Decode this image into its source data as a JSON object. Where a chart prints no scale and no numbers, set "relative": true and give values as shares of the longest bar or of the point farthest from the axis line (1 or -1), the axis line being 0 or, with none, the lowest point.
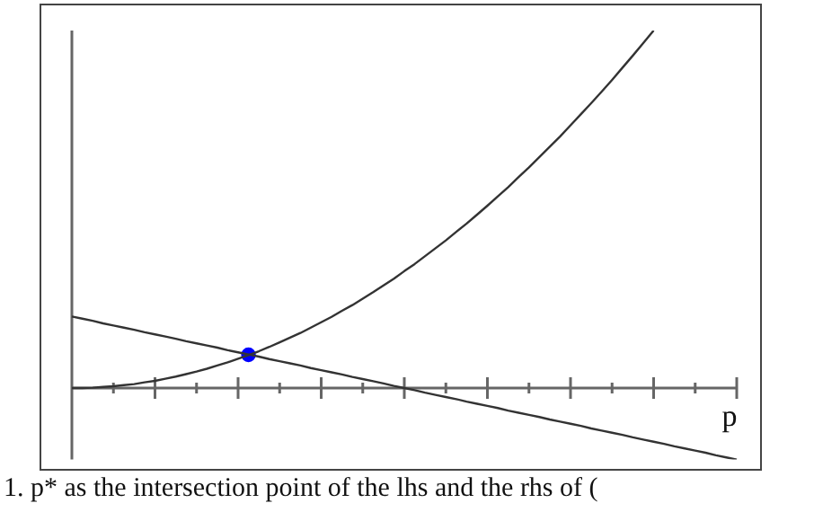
{
  "chart_data": {
    "type": "line",
    "relative": true,
    "xlabel": "p",
    "legend": false,
    "annotations": [
      "1.   p* as the intersection point of the lhs and the rhs of ("
    ],
    "categories": [
      null,
      null,
      null,
      null,
      null,
      null,
      null,
      null,
      null,
      null,
      null,
      null,
      null,
      null,
      null,
      null,
      null,
      null,
      null,
      null,
      null,
      null,
      null,
      null,
      null,
      null,
      null,
      null,
      null,
      null,
      null,
      null,
      null,
      null,
      null,
      null,
      null,
      null,
      null,
      null,
      null,
      null,
      null,
      null,
      null,
      null,
      null,
      null,
      null,
      null,
      null,
      null,
      null,
      null,
      null,
      null,
      null,
      null,
      null,
      null,
      null,
      null,
      null,
      null,
      null
    ],
    "series": [
      {
        "color": "#333333",
        "marker": "none",
        "values": [
          0,
          0,
          0.001,
          0.003,
          0.005,
          0.008,
          0.011,
          0.016,
          0.02,
          0.026,
          0.032,
          0.039,
          0.046,
          0.054,
          0.063,
          0.072,
          0.082,
          0.092,
          0.103,
          0.115,
          0.128,
          0.141,
          0.154,
          0.169,
          0.184,
          0.199,
          0.216,
          0.232,
          0.25,
          0.268,
          0.287,
          0.306,
          0.327,
          0.347,
          0.369,
          0.391,
          0.413,
          0.437,
          0.46,
          0.485,
          0.51,
          0.536,
          0.562,
          0.59,
          0.617,
          0.646,
          0.675,
          0.704,
          0.735,
          0.766,
          0.797,
          0.829,
          0.862,
          0.896,
          0.93,
          0.965,
          1,
          null,
          null,
          null,
          null,
          null,
          null,
          null,
          null
        ]
      },
      {
        "color": "#333333",
        "marker": "none",
        "values": [
          0.2,
          0.194,
          0.188,
          0.181,
          0.175,
          0.169,
          0.163,
          0.156,
          0.15,
          0.144,
          0.138,
          0.131,
          0.125,
          0.119,
          0.113,
          0.106,
          0.1,
          0.094,
          0.088,
          0.081,
          0.075,
          0.069,
          0.063,
          0.056,
          0.05,
          0.044,
          0.038,
          0.031,
          0.025,
          0.019,
          0.013,
          0.006,
          0,
          -0.006,
          -0.013,
          -0.019,
          -0.025,
          -0.031,
          -0.038,
          -0.044,
          -0.05,
          -0.056,
          -0.063,
          -0.069,
          -0.075,
          -0.081,
          -0.088,
          -0.094,
          -0.1,
          -0.106,
          -0.113,
          -0.119,
          -0.125,
          -0.131,
          -0.138,
          -0.144,
          -0.15,
          -0.156,
          -0.163,
          -0.169,
          -0.175,
          -0.181,
          -0.188,
          -0.194,
          -0.2
        ]
      },
      {
        "color": "#0000ff",
        "marker": "circle",
        "values": [
          null,
          null,
          null,
          null,
          null,
          null,
          null,
          null,
          null,
          null,
          null,
          null,
          null,
          null,
          null,
          null,
          null,
          0.093,
          null,
          null,
          null,
          null,
          null,
          null,
          null,
          null,
          null,
          null,
          null,
          null,
          null,
          null,
          null,
          null,
          null,
          null,
          null,
          null,
          null,
          null,
          null,
          null,
          null,
          null,
          null,
          null,
          null,
          null,
          null,
          null,
          null,
          null,
          null,
          null,
          null,
          null,
          null,
          null,
          null,
          null,
          null,
          null,
          null,
          null,
          null
        ]
      }
    ]
  }
}
